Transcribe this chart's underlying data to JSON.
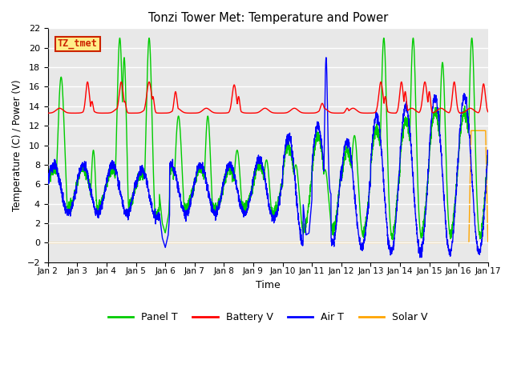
{
  "title": "Tonzi Tower Met: Temperature and Power",
  "xlabel": "Time",
  "ylabel": "Temperature (C) / Power (V)",
  "ylim": [
    -2,
    22
  ],
  "yticks": [
    -2,
    0,
    2,
    4,
    6,
    8,
    10,
    12,
    14,
    16,
    18,
    20,
    22
  ],
  "xlim": [
    0,
    15
  ],
  "xtick_labels": [
    "Jan 2",
    "Jan 3",
    "Jan 4",
    "Jan 5",
    "Jan 6",
    "Jan 7",
    "Jan 8",
    "Jan 9",
    "Jan 10",
    "Jan 11",
    "Jan 12",
    "Jan 13",
    "Jan 14",
    "Jan 15",
    "Jan 16",
    "Jan 17"
  ],
  "xtick_positions": [
    0,
    1,
    2,
    3,
    4,
    5,
    6,
    7,
    8,
    9,
    10,
    11,
    12,
    13,
    14,
    15
  ],
  "legend_labels": [
    "Panel T",
    "Battery V",
    "Air T",
    "Solar V"
  ],
  "legend_colors": [
    "#00cc00",
    "#ff0000",
    "#0000ff",
    "#ffa500"
  ],
  "watermark_text": "TZ_tmet",
  "watermark_color": "#cc2200",
  "watermark_bg": "#ffee88",
  "bg_color": "#e8e8e8",
  "line_width": 1.0,
  "panel_T_color": "#00cc00",
  "battery_V_color": "#ff0000",
  "air_T_color": "#0000ff",
  "solar_V_color": "#ffa500",
  "figsize": [
    6.4,
    4.8
  ],
  "dpi": 100
}
